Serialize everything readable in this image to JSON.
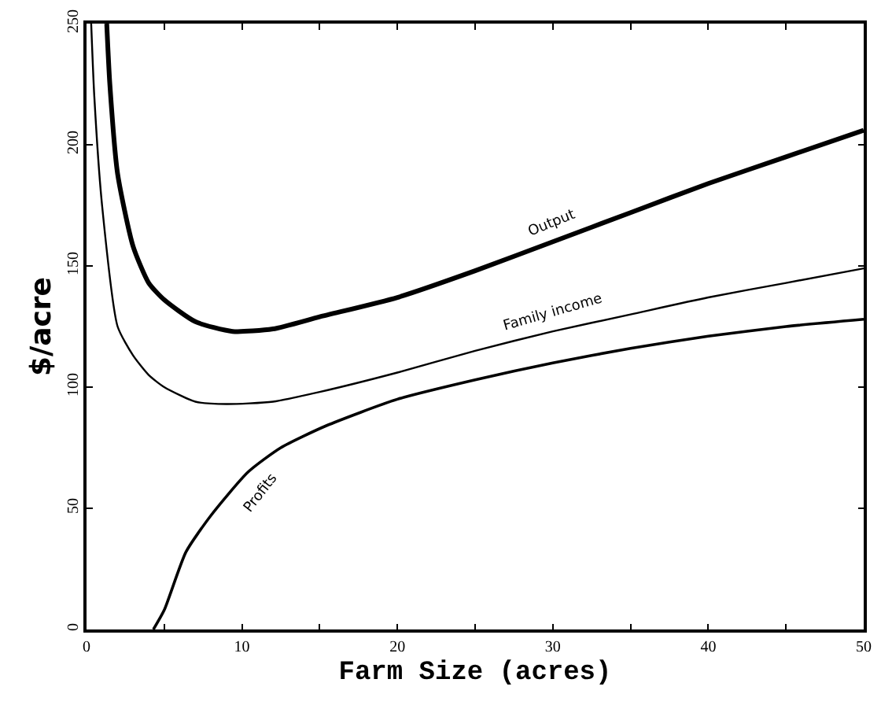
{
  "chart_data": {
    "type": "line",
    "xlabel": "Farm Size (acres)",
    "ylabel": "$/acre",
    "xlim": [
      0,
      50
    ],
    "ylim": [
      0,
      250
    ],
    "xticks": [
      0,
      {
        "value": 5,
        "label": null
      },
      10,
      {
        "value": 15,
        "label": null
      },
      20,
      {
        "value": 25,
        "label": null
      },
      30,
      {
        "value": 35,
        "label": null
      },
      40,
      {
        "value": 45,
        "label": null
      },
      50
    ],
    "yticks": [
      0,
      50,
      100,
      150,
      200,
      250
    ],
    "marker": "none",
    "line_style": "solid",
    "series": [
      {
        "name": "Output",
        "color": "#000000",
        "x": [
          1.3,
          1.5,
          2,
          3,
          4,
          5,
          7,
          9.4,
          12,
          15,
          20,
          25,
          30,
          35,
          40,
          45,
          50
        ],
        "values": [
          250,
          225,
          188,
          158,
          143,
          136,
          127,
          123,
          124,
          129,
          137,
          148,
          160,
          172,
          184,
          195,
          206
        ]
      },
      {
        "name": "Family income",
        "color": "#000000",
        "x": [
          0.3,
          0.5,
          1,
          2,
          3,
          4,
          5,
          7,
          9,
          12,
          15,
          20,
          25,
          30,
          35,
          40,
          45,
          50
        ],
        "values": [
          250,
          220,
          175,
          125,
          113,
          105,
          100,
          94,
          93,
          94,
          98,
          106,
          115,
          123,
          130,
          137,
          143,
          149
        ]
      },
      {
        "name": "Profits",
        "color": "#000000",
        "x": [
          4.3,
          5,
          6.4,
          8,
          10.4,
          12.5,
          15.4,
          20,
          25,
          30,
          35,
          40,
          45,
          50
        ],
        "values": [
          0,
          8,
          32,
          47,
          65,
          75,
          84,
          95,
          103,
          110,
          116,
          121,
          125,
          128
        ]
      }
    ]
  }
}
